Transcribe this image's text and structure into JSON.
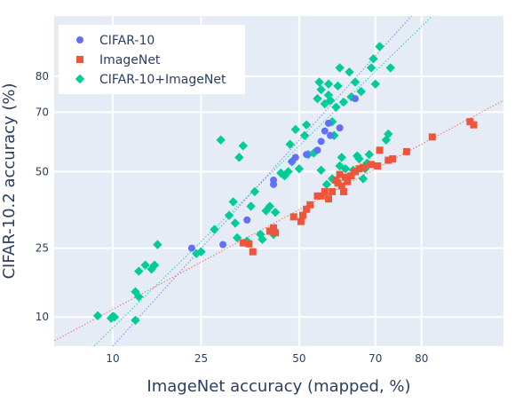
{
  "chart_data": {
    "type": "scatter",
    "title": "",
    "xlabel": "ImageNet accuracy (mapped, %)",
    "ylabel": "CIFAR-10.2 accuracy (%)",
    "x_scale": "probit",
    "y_scale": "probit",
    "xlim": [
      4.6,
      92
    ],
    "ylim": [
      6.2,
      91.5
    ],
    "x_ticks": [
      10,
      25,
      50,
      70,
      80
    ],
    "y_ticks": [
      10,
      25,
      50,
      70,
      80
    ],
    "grid": true,
    "legend_position": "top-left",
    "series": [
      {
        "name": "CIFAR-10",
        "marker": "circle",
        "color": "#636efa",
        "points": [
          [
            23.0,
            25.0
          ],
          [
            30.0,
            26.0
          ],
          [
            36.0,
            33.5
          ],
          [
            43.0,
            45.5
          ],
          [
            43.0,
            47.0
          ],
          [
            48.0,
            53.5
          ],
          [
            49.0,
            55.0
          ],
          [
            52.0,
            56.0
          ],
          [
            55.0,
            57.5
          ],
          [
            56.0,
            60.5
          ],
          [
            57.0,
            64.0
          ],
          [
            58.5,
            62.5
          ],
          [
            58.0,
            66.5
          ],
          [
            61.0,
            65.0
          ],
          [
            65.0,
            74.0
          ]
        ]
      },
      {
        "name": "ImageNet",
        "marker": "square",
        "color": "#ef553b",
        "points": [
          [
            35.0,
            26.5
          ],
          [
            36.5,
            26.2
          ],
          [
            37.5,
            24.0
          ],
          [
            42.0,
            30.0
          ],
          [
            43.0,
            31.0
          ],
          [
            43.5,
            29.5
          ],
          [
            48.5,
            34.5
          ],
          [
            50.5,
            33.0
          ],
          [
            51.0,
            35.0
          ],
          [
            52.0,
            37.0
          ],
          [
            53.0,
            38.5
          ],
          [
            55.0,
            41.5
          ],
          [
            56.0,
            41.5
          ],
          [
            57.0,
            43.0
          ],
          [
            58.0,
            40.5
          ],
          [
            59.0,
            43.0
          ],
          [
            60.0,
            47.0
          ],
          [
            60.5,
            46.0
          ],
          [
            61.0,
            49.0
          ],
          [
            61.5,
            45.0
          ],
          [
            62.0,
            43.0
          ],
          [
            62.5,
            48.0
          ],
          [
            63.0,
            46.5
          ],
          [
            64.0,
            48.5
          ],
          [
            65.0,
            50.0
          ],
          [
            66.0,
            51.0
          ],
          [
            67.0,
            51.5
          ],
          [
            69.0,
            52.5
          ],
          [
            70.5,
            52.0
          ],
          [
            71.0,
            57.5
          ],
          [
            73.0,
            54.0
          ],
          [
            74.0,
            54.5
          ],
          [
            77.0,
            57.0
          ],
          [
            82.0,
            62.0
          ],
          [
            88.0,
            67.0
          ],
          [
            88.5,
            66.0
          ]
        ]
      },
      {
        "name": "CIFAR-10+ImageNet",
        "marker": "diamond",
        "color": "#00cc96",
        "points": [
          [
            8.3,
            10.2
          ],
          [
            9.8,
            9.8
          ],
          [
            10.0,
            10.1
          ],
          [
            10.2,
            10.0
          ],
          [
            13.0,
            14.5
          ],
          [
            13.0,
            9.5
          ],
          [
            13.5,
            13.5
          ],
          [
            13.5,
            19.0
          ],
          [
            14.5,
            20.5
          ],
          [
            15.5,
            19.5
          ],
          [
            16.0,
            20.5
          ],
          [
            16.5,
            26.0
          ],
          [
            24.0,
            23.5
          ],
          [
            25.0,
            24.0
          ],
          [
            28.0,
            30.5
          ],
          [
            29.5,
            61.0
          ],
          [
            31.5,
            35.0
          ],
          [
            32.5,
            39.5
          ],
          [
            33.0,
            32.5
          ],
          [
            33.5,
            28.0
          ],
          [
            34.0,
            55.0
          ],
          [
            35.0,
            59.0
          ],
          [
            36.0,
            27.0
          ],
          [
            37.0,
            38.0
          ],
          [
            38.0,
            43.0
          ],
          [
            39.5,
            29.0
          ],
          [
            40.0,
            27.5
          ],
          [
            41.0,
            36.5
          ],
          [
            42.0,
            38.0
          ],
          [
            43.0,
            29.0
          ],
          [
            43.5,
            36.0
          ],
          [
            45.0,
            49.5
          ],
          [
            46.0,
            48.5
          ],
          [
            47.0,
            50.0
          ],
          [
            47.5,
            59.5
          ],
          [
            48.0,
            53.5
          ],
          [
            49.0,
            64.5
          ],
          [
            50.0,
            51.0
          ],
          [
            51.5,
            62.5
          ],
          [
            52.0,
            66.0
          ],
          [
            52.5,
            56.0
          ],
          [
            54.0,
            56.5
          ],
          [
            55.0,
            74.0
          ],
          [
            55.5,
            78.5
          ],
          [
            56.0,
            76.5
          ],
          [
            56.0,
            50.5
          ],
          [
            57.0,
            72.5
          ],
          [
            57.5,
            45.5
          ],
          [
            58.0,
            75.0
          ],
          [
            58.0,
            78.0
          ],
          [
            58.5,
            73.5
          ],
          [
            59.0,
            67.0
          ],
          [
            59.5,
            62.5
          ],
          [
            60.0,
            71.5
          ],
          [
            60.5,
            77.5
          ],
          [
            61.0,
            82.0
          ],
          [
            61.5,
            55.0
          ],
          [
            62.0,
            73.0
          ],
          [
            62.5,
            51.0
          ],
          [
            63.0,
            48.0
          ],
          [
            63.5,
            81.0
          ],
          [
            64.0,
            74.5
          ],
          [
            65.0,
            78.5
          ],
          [
            65.5,
            55.5
          ],
          [
            66.0,
            54.5
          ],
          [
            66.5,
            76.0
          ],
          [
            67.0,
            47.5
          ],
          [
            67.5,
            51.0
          ],
          [
            68.0,
            53.0
          ],
          [
            68.5,
            56.0
          ],
          [
            69.0,
            82.0
          ],
          [
            69.5,
            84.0
          ],
          [
            70.0,
            78.0
          ],
          [
            71.0,
            86.5
          ],
          [
            72.5,
            61.0
          ],
          [
            73.0,
            63.0
          ],
          [
            73.5,
            82.0
          ],
          [
            59.0,
            47.5
          ],
          [
            61.0,
            52.0
          ],
          [
            64.5,
            50.5
          ]
        ]
      }
    ],
    "fit_lines": [
      {
        "color": "#636efa",
        "style": "dotted",
        "from": [
          10.0,
          6.2
        ],
        "to": [
          78.0,
          91.5
        ]
      },
      {
        "color": "#ef553b",
        "style": "dotted",
        "from": [
          4.6,
          6.8
        ],
        "to": [
          92.0,
          73.5
        ]
      },
      {
        "color": "#00cc96",
        "style": "dotted",
        "from": [
          4.6,
          3.0
        ],
        "to": [
          82.0,
          91.5
        ]
      }
    ]
  }
}
